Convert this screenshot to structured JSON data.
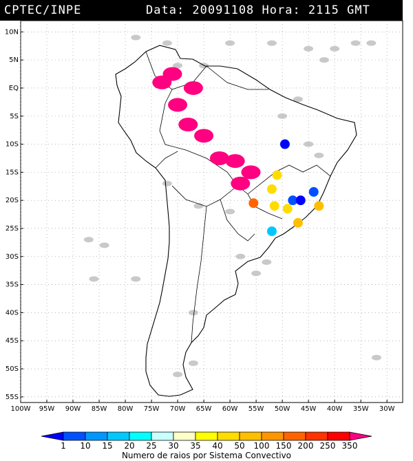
{
  "header": {
    "source": "CPTEC/INPE",
    "datetime": "Data: 20091108 Hora: 2115 GMT"
  },
  "axes": {
    "lat_labels": [
      "10N",
      "5N",
      "EQ",
      "5S",
      "10S",
      "15S",
      "20S",
      "25S",
      "30S",
      "35S",
      "40S",
      "45S",
      "50S",
      "55S"
    ],
    "lat_values": [
      10,
      5,
      0,
      -5,
      -10,
      -15,
      -20,
      -25,
      -30,
      -35,
      -40,
      -45,
      -50,
      -55
    ],
    "lon_labels": [
      "100W",
      "95W",
      "90W",
      "85W",
      "80W",
      "75W",
      "70W",
      "65W",
      "60W",
      "55W",
      "50W",
      "45W",
      "40W",
      "35W",
      "30W"
    ],
    "lon_values": [
      -100,
      -95,
      -90,
      -85,
      -80,
      -75,
      -70,
      -65,
      -60,
      -55,
      -50,
      -45,
      -40,
      -35,
      -30
    ],
    "lon_range": [
      -100,
      -27
    ],
    "lat_range": [
      -56,
      12
    ],
    "grid": "dotted"
  },
  "colorbar": {
    "title": "Numero de raios por Sistema Convectivo",
    "labels": [
      "1",
      "10",
      "15",
      "20",
      "25",
      "30",
      "35",
      "40",
      "50",
      "100",
      "150",
      "200",
      "250",
      "350"
    ],
    "colors": [
      "#0000ff",
      "#0050ff",
      "#0096ff",
      "#00c8ff",
      "#00ffff",
      "#c8ffff",
      "#ffffc8",
      "#ffff00",
      "#ffdc00",
      "#ffbe00",
      "#ff9600",
      "#ff6400",
      "#ff3200",
      "#ff0000",
      "#ff0080"
    ]
  },
  "systems": [
    {
      "lon": -73,
      "lat": 1,
      "color": "#ff0080"
    },
    {
      "lon": -71,
      "lat": 2.5,
      "color": "#ff0080"
    },
    {
      "lon": -67,
      "lat": 0,
      "color": "#ff0080"
    },
    {
      "lon": -70,
      "lat": -3,
      "color": "#ff0080"
    },
    {
      "lon": -68,
      "lat": -6.5,
      "color": "#ff0080"
    },
    {
      "lon": -65,
      "lat": -8.5,
      "color": "#ff0080"
    },
    {
      "lon": -62,
      "lat": -12.5,
      "color": "#ff0080"
    },
    {
      "lon": -59,
      "lat": -13,
      "color": "#ff0080"
    },
    {
      "lon": -56,
      "lat": -15,
      "color": "#ff0080"
    },
    {
      "lon": -58,
      "lat": -17,
      "color": "#ff0080"
    },
    {
      "lon": -55.5,
      "lat": -20.5,
      "color": "#ff6400"
    },
    {
      "lon": -49.5,
      "lat": -10,
      "color": "#0000ff"
    },
    {
      "lon": -51,
      "lat": -15.5,
      "color": "#ffdc00"
    },
    {
      "lon": -52,
      "lat": -18,
      "color": "#ffdc00"
    },
    {
      "lon": -51.5,
      "lat": -21,
      "color": "#ffdc00"
    },
    {
      "lon": -48,
      "lat": -20,
      "color": "#0050ff"
    },
    {
      "lon": -46.5,
      "lat": -20,
      "color": "#0000ff"
    },
    {
      "lon": -44,
      "lat": -18.5,
      "color": "#0050ff"
    },
    {
      "lon": -43,
      "lat": -21,
      "color": "#ffbe00"
    },
    {
      "lon": -47,
      "lat": -24,
      "color": "#ffbe00"
    },
    {
      "lon": -49,
      "lat": -21.5,
      "color": "#ffdc00"
    },
    {
      "lon": -52,
      "lat": -25.5,
      "color": "#00c8ff"
    }
  ],
  "clouds_color": "#c0c0c0",
  "map_colors": {
    "coast": "#000000",
    "border": "#000000",
    "grid": "#888888"
  }
}
